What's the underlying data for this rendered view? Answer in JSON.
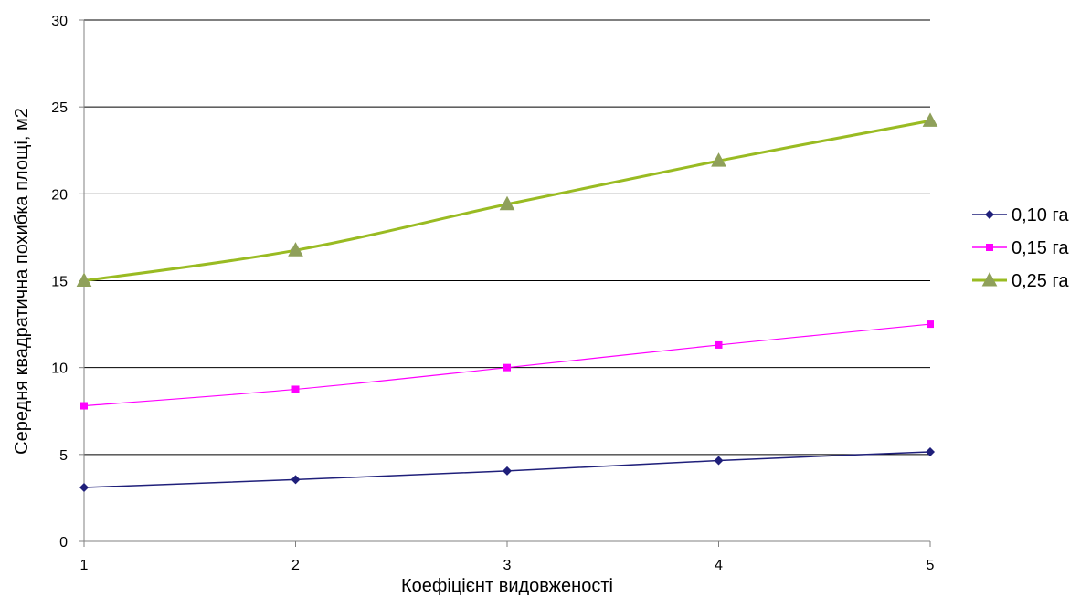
{
  "chart_data": {
    "type": "line",
    "title": "",
    "xlabel": "Коефіцієнт видовженості",
    "ylabel": "Середня квадратична похибка площі, м2",
    "x": [
      1,
      2,
      3,
      4,
      5
    ],
    "x_ticks": [
      "1",
      "2",
      "3",
      "4",
      "5"
    ],
    "y_ticks": [
      "0",
      "5",
      "10",
      "15",
      "20",
      "25",
      "30"
    ],
    "xlim": [
      1,
      5
    ],
    "ylim": [
      0,
      30
    ],
    "grid": "horizontal",
    "legend_position": "right",
    "series": [
      {
        "name": "0,10 га",
        "color": "#1f1f7a",
        "marker": "diamond",
        "values": [
          3.1,
          3.55,
          4.05,
          4.65,
          5.15
        ]
      },
      {
        "name": "0,15 га",
        "color": "#ff00ff",
        "marker": "square",
        "values": [
          7.8,
          8.75,
          10.0,
          11.3,
          12.5
        ]
      },
      {
        "name": "0,25 га",
        "color": "#99bb22",
        "marker": "triangle",
        "values": [
          15.0,
          16.75,
          19.4,
          21.9,
          24.2
        ]
      }
    ]
  }
}
